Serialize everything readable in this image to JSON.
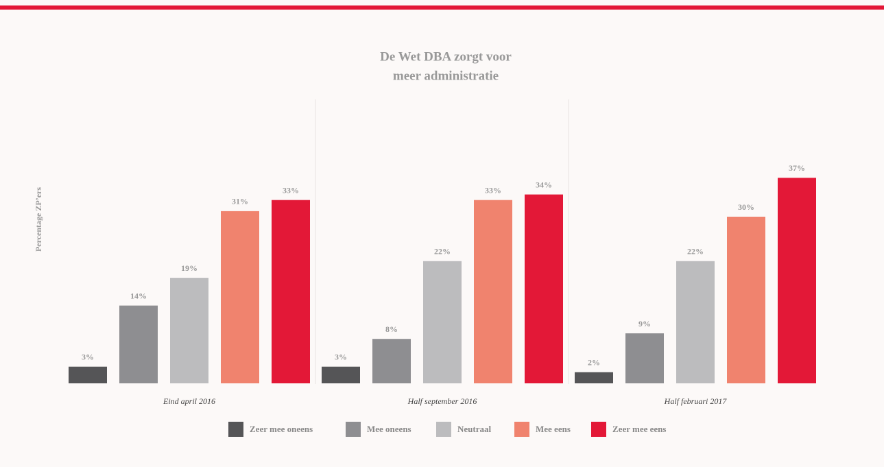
{
  "chart_data": {
    "type": "bar",
    "title": [
      "De Wet DBA zorgt voor",
      "meer administratie"
    ],
    "y_label": "Percentage ZP’ers",
    "categories": [
      "Eind april 2016",
      "Half september 2016",
      "Half februari 2017"
    ],
    "series": [
      {
        "name": "Zeer mee oneens",
        "color": "#555557",
        "values": [
          3,
          3,
          2
        ],
        "value_labels": [
          "3%",
          "3%",
          "2%"
        ]
      },
      {
        "name": "Mee oneens",
        "color": "#8e8e91",
        "values": [
          14,
          8,
          9
        ],
        "value_labels": [
          "14%",
          "8%",
          "9%"
        ]
      },
      {
        "name": "Neutraal",
        "color": "#bcbcbe",
        "values": [
          19,
          22,
          22
        ],
        "value_labels": [
          "19%",
          "22%",
          "22%"
        ]
      },
      {
        "name": "Mee eens",
        "color": "#f0836e",
        "values": [
          31,
          33,
          30
        ],
        "value_labels": [
          "31%",
          "33%",
          "30%"
        ]
      },
      {
        "name": "Zeer mee eens",
        "color": "#e31837",
        "values": [
          33,
          34,
          37
        ],
        "value_labels": [
          "33%",
          "34%",
          "37%"
        ]
      }
    ]
  }
}
